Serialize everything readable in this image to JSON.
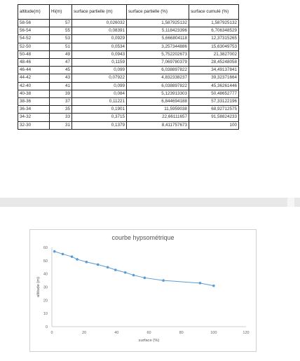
{
  "table": {
    "headers": [
      "altitude(m)",
      "Hi(m)",
      "surface partielle (m)",
      "surface partielle (%)",
      "surface cumulé (%)"
    ],
    "rows": [
      [
        "58-56",
        "57",
        "0,026032",
        "1,587925132",
        "1,587925132"
      ],
      [
        "56-54",
        "55",
        "0,08391",
        "5,118423396",
        "6,706348529"
      ],
      [
        "54-52",
        "53",
        "0,0929",
        "5,666804118",
        "12,37315265"
      ],
      [
        "52-50",
        "51",
        "0,0534",
        "3,257344886",
        "15,63049753"
      ],
      [
        "50-48",
        "49",
        "0,0943",
        "5,752202673",
        "21,3827002"
      ],
      [
        "48-46",
        "47",
        "0,1159",
        "7,069780379",
        "28,45248058"
      ],
      [
        "46-44",
        "45",
        "0,099",
        "6,038897822",
        "34,49137841"
      ],
      [
        "44-42",
        "43",
        "0,07922",
        "4,832338237",
        "39,32371664"
      ],
      [
        "42-40",
        "41",
        "0,099",
        "6,038897822",
        "45,36261446"
      ],
      [
        "40-38",
        "39",
        "0,084",
        "5,123913303",
        "50,48652777"
      ],
      [
        "38-36",
        "37",
        "0,11221",
        "6,844694188",
        "57,33122196"
      ],
      [
        "36-34",
        "35",
        "0,1901",
        "11,5959038",
        "68,92712575"
      ],
      [
        "34-32",
        "33",
        "0,3715",
        "22,66111657",
        "91,58824233"
      ],
      [
        "32-30",
        "31",
        "0,1379",
        "8,411757673",
        "100"
      ]
    ]
  },
  "chart_data": {
    "type": "scatter",
    "title": "courbe hypsométrique",
    "xlabel": "surface (%)",
    "ylabel": "altitude (m)",
    "xlim": [
      0,
      120
    ],
    "ylim": [
      0,
      60
    ],
    "xticks": [
      "0",
      "20",
      "40",
      "60",
      "80",
      "100",
      "120"
    ],
    "yticks": [
      "0",
      "10",
      "20",
      "30",
      "40",
      "50",
      "60"
    ],
    "grid": false,
    "series_color": "#5b9bd5",
    "x": [
      1.587925132,
      6.706348529,
      12.37315265,
      15.63049753,
      21.3827002,
      28.45248058,
      34.49137841,
      39.32371664,
      45.36261446,
      50.48652777,
      57.33122196,
      68.92712575,
      91.58824233,
      100
    ],
    "y": [
      57,
      55,
      53,
      51,
      49,
      47,
      45,
      43,
      41,
      39,
      37,
      35,
      33,
      31
    ]
  }
}
